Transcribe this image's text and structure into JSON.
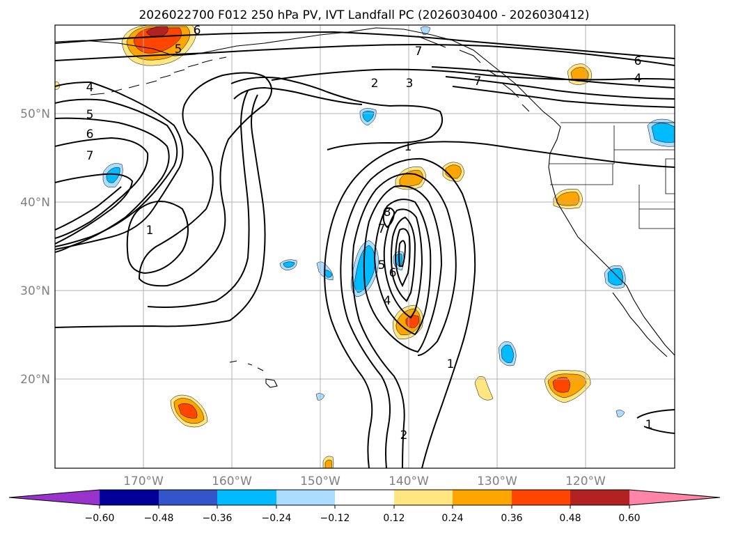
{
  "title": "2026022700 F012 250 hPa PV, IVT Landfall PC (2026030400 - 2026030412)",
  "lat_labels": [
    "50°N",
    "40°N",
    "30°N",
    "20°N"
  ],
  "lon_labels": [
    "170°W",
    "160°W",
    "150°W",
    "140°W",
    "130°W",
    "120°W"
  ],
  "contour_labels": [
    "6",
    "5",
    "7",
    "2",
    "3",
    "7",
    "6",
    "4",
    "4",
    "5",
    "6",
    "7",
    "1",
    "1",
    "8",
    "7",
    "5",
    "6",
    "4",
    "1",
    "2",
    "1"
  ],
  "colorbar": {
    "colors": [
      "#9933cc",
      "#000099",
      "#3355cc",
      "#00bbff",
      "#aaddff",
      "#ffffff",
      "#ffe680",
      "#ffa500",
      "#ff4500",
      "#b22222",
      "#ff85a8"
    ],
    "tick_labels": [
      "−0.60",
      "−0.48",
      "−0.36",
      "−0.24",
      "−0.12",
      "0.12",
      "0.24",
      "0.36",
      "0.48",
      "0.60"
    ]
  },
  "shading": {
    "pos_light": "#ffe680",
    "pos_mid": "#ffa500",
    "pos_strong": "#ff4500",
    "pos_max": "#b22222",
    "neg_light": "#aaddff",
    "neg_mid": "#00bbff"
  }
}
